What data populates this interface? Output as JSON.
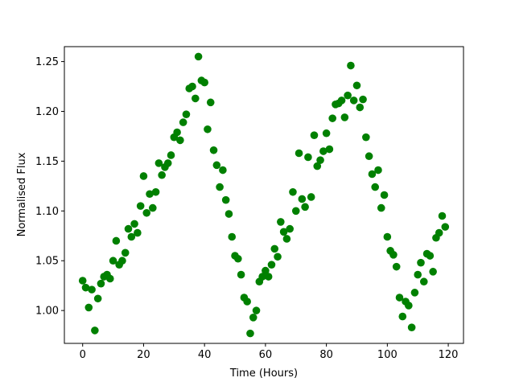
{
  "chart_data": {
    "type": "scatter",
    "title": "",
    "xlabel": "Time (Hours)",
    "ylabel": "Normalised Flux",
    "xlim": [
      -6,
      125
    ],
    "ylim": [
      0.967,
      1.265
    ],
    "xticks": [
      0,
      20,
      40,
      60,
      80,
      100,
      120
    ],
    "yticks": [
      1.0,
      1.05,
      1.1,
      1.15,
      1.2,
      1.25
    ],
    "xtick_labels": [
      "0",
      "20",
      "40",
      "60",
      "80",
      "100",
      "120"
    ],
    "ytick_labels": [
      "1.00",
      "1.05",
      "1.10",
      "1.15",
      "1.20",
      "1.25"
    ],
    "grid": false,
    "marker_color": "#008000",
    "points": [
      [
        0.0,
        1.03
      ],
      [
        1.0,
        1.023
      ],
      [
        2.0,
        1.003
      ],
      [
        3.0,
        1.021
      ],
      [
        4.0,
        0.98
      ],
      [
        5.0,
        1.012
      ],
      [
        6.0,
        1.027
      ],
      [
        7.0,
        1.034
      ],
      [
        8.0,
        1.036
      ],
      [
        9.0,
        1.032
      ],
      [
        10.0,
        1.05
      ],
      [
        11.0,
        1.07
      ],
      [
        12.0,
        1.046
      ],
      [
        13.0,
        1.05
      ],
      [
        14.0,
        1.058
      ],
      [
        15.0,
        1.082
      ],
      [
        16.0,
        1.074
      ],
      [
        17.0,
        1.087
      ],
      [
        18.0,
        1.078
      ],
      [
        19.0,
        1.105
      ],
      [
        20.0,
        1.135
      ],
      [
        21.0,
        1.098
      ],
      [
        22.0,
        1.117
      ],
      [
        23.0,
        1.103
      ],
      [
        24.0,
        1.119
      ],
      [
        25.0,
        1.148
      ],
      [
        26.0,
        1.136
      ],
      [
        27.0,
        1.144
      ],
      [
        28.0,
        1.148
      ],
      [
        29.0,
        1.156
      ],
      [
        30.0,
        1.174
      ],
      [
        31.0,
        1.179
      ],
      [
        32.0,
        1.171
      ],
      [
        33.0,
        1.189
      ],
      [
        34.0,
        1.197
      ],
      [
        35.0,
        1.223
      ],
      [
        36.0,
        1.225
      ],
      [
        37.0,
        1.213
      ],
      [
        38.0,
        1.255
      ],
      [
        39.0,
        1.231
      ],
      [
        40.0,
        1.229
      ],
      [
        41.0,
        1.182
      ],
      [
        42.0,
        1.209
      ],
      [
        43.0,
        1.161
      ],
      [
        44.0,
        1.146
      ],
      [
        45.0,
        1.124
      ],
      [
        46.0,
        1.141
      ],
      [
        47.0,
        1.111
      ],
      [
        48.0,
        1.097
      ],
      [
        49.0,
        1.074
      ],
      [
        50.0,
        1.055
      ],
      [
        51.0,
        1.052
      ],
      [
        52.0,
        1.036
      ],
      [
        53.0,
        1.013
      ],
      [
        54.0,
        1.009
      ],
      [
        55.0,
        0.977
      ],
      [
        56.0,
        0.993
      ],
      [
        57.0,
        1.0
      ],
      [
        58.0,
        1.029
      ],
      [
        59.0,
        1.034
      ],
      [
        60.0,
        1.04
      ],
      [
        61.0,
        1.034
      ],
      [
        62.0,
        1.046
      ],
      [
        63.0,
        1.062
      ],
      [
        64.0,
        1.054
      ],
      [
        65.0,
        1.089
      ],
      [
        66.0,
        1.079
      ],
      [
        67.0,
        1.072
      ],
      [
        68.0,
        1.082
      ],
      [
        69.0,
        1.119
      ],
      [
        70.0,
        1.1
      ],
      [
        71.0,
        1.158
      ],
      [
        72.0,
        1.112
      ],
      [
        73.0,
        1.104
      ],
      [
        74.0,
        1.154
      ],
      [
        75.0,
        1.114
      ],
      [
        76.0,
        1.176
      ],
      [
        77.0,
        1.145
      ],
      [
        78.0,
        1.151
      ],
      [
        79.0,
        1.16
      ],
      [
        80.0,
        1.178
      ],
      [
        81.0,
        1.162
      ],
      [
        82.0,
        1.193
      ],
      [
        83.0,
        1.207
      ],
      [
        84.0,
        1.208
      ],
      [
        85.0,
        1.211
      ],
      [
        86.0,
        1.194
      ],
      [
        87.0,
        1.216
      ],
      [
        88.0,
        1.246
      ],
      [
        89.0,
        1.211
      ],
      [
        90.0,
        1.226
      ],
      [
        91.0,
        1.204
      ],
      [
        92.0,
        1.212
      ],
      [
        93.0,
        1.174
      ],
      [
        94.0,
        1.155
      ],
      [
        95.0,
        1.137
      ],
      [
        96.0,
        1.124
      ],
      [
        97.0,
        1.141
      ],
      [
        98.0,
        1.103
      ],
      [
        99.0,
        1.116
      ],
      [
        100.0,
        1.074
      ],
      [
        101.0,
        1.06
      ],
      [
        102.0,
        1.056
      ],
      [
        103.0,
        1.044
      ],
      [
        104.0,
        1.013
      ],
      [
        105.0,
        0.994
      ],
      [
        106.0,
        1.009
      ],
      [
        107.0,
        1.005
      ],
      [
        108.0,
        0.983
      ],
      [
        109.0,
        1.018
      ],
      [
        110.0,
        1.036
      ],
      [
        111.0,
        1.048
      ],
      [
        112.0,
        1.029
      ],
      [
        113.0,
        1.057
      ],
      [
        114.0,
        1.055
      ],
      [
        115.0,
        1.039
      ],
      [
        116.0,
        1.073
      ],
      [
        117.0,
        1.078
      ],
      [
        118.0,
        1.095
      ],
      [
        119.0,
        1.084
      ]
    ]
  }
}
